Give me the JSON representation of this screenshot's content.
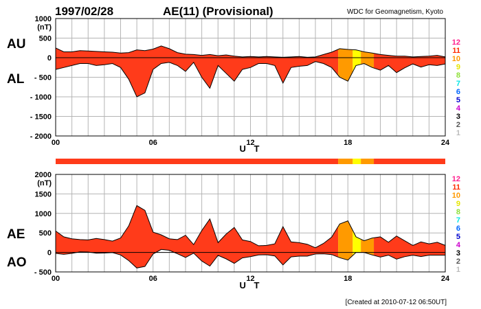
{
  "header": {
    "date": "1997/02/28",
    "title": "AE(11) (Provisional)",
    "organization": "WDC for Geomagnetism, Kyoto"
  },
  "footer": {
    "created": "[Created at 2010-07-12 06:50UT]"
  },
  "colors": {
    "level_11": "#ff3b1a",
    "level_10": "#ff9a00",
    "level_9": "#ffff00",
    "outline": "#000000",
    "grid": "#b4b4b4"
  },
  "legend": [
    {
      "label": "12",
      "color": "#ff1f8e"
    },
    {
      "label": "11",
      "color": "#ff2a00"
    },
    {
      "label": "10",
      "color": "#ff9900"
    },
    {
      "label": "9",
      "color": "#e6e600"
    },
    {
      "label": "8",
      "color": "#8fe03a"
    },
    {
      "label": "7",
      "color": "#00e5e5"
    },
    {
      "label": "6",
      "color": "#0066ff"
    },
    {
      "label": "5",
      "color": "#0000cc"
    },
    {
      "label": "4",
      "color": "#cc00cc"
    },
    {
      "label": "3",
      "color": "#000000"
    },
    {
      "label": "2",
      "color": "#555555"
    },
    {
      "label": "1",
      "color": "#bbbbbb"
    }
  ],
  "chart_data": [
    {
      "type": "area",
      "id": "au_al",
      "xlabel": "U T",
      "ylabel": "(nT)",
      "series_labels": [
        "AU",
        "AL"
      ],
      "xlim": [
        0,
        24
      ],
      "ylim": [
        -2000,
        1000
      ],
      "x_ticks": [
        0,
        6,
        12,
        18,
        24
      ],
      "x_tick_labels": [
        "00",
        "06",
        "12",
        "18",
        "24"
      ],
      "y_ticks": [
        1000,
        500,
        0,
        -500,
        -1000,
        -1500,
        -2000
      ],
      "y_tick_labels": [
        "1000",
        "500",
        "0",
        "- 500",
        "- 1000",
        "- 1500",
        "- 2000"
      ],
      "grid": true,
      "x": [
        0,
        0.5,
        1,
        1.5,
        2,
        2.5,
        3,
        3.5,
        4,
        4.5,
        5,
        5.5,
        6,
        6.5,
        7,
        7.5,
        8,
        8.5,
        9,
        9.5,
        10,
        10.5,
        11,
        11.5,
        12,
        12.5,
        13,
        13.5,
        14,
        14.5,
        15,
        15.5,
        16,
        16.5,
        17,
        17.5,
        18,
        18.5,
        19,
        19.5,
        20,
        20.5,
        21,
        21.5,
        22,
        22.5,
        23,
        23.5,
        24
      ],
      "au": [
        250,
        150,
        150,
        180,
        170,
        160,
        150,
        140,
        120,
        130,
        200,
        180,
        220,
        300,
        230,
        130,
        90,
        80,
        60,
        80,
        50,
        70,
        40,
        20,
        30,
        20,
        30,
        20,
        10,
        20,
        30,
        10,
        20,
        80,
        140,
        230,
        210,
        200,
        150,
        120,
        80,
        60,
        40,
        40,
        20,
        30,
        40,
        60,
        20
      ],
      "al": [
        -300,
        -250,
        -200,
        -150,
        -150,
        -200,
        -180,
        -150,
        -250,
        -550,
        -1000,
        -900,
        -300,
        -150,
        -120,
        -200,
        -350,
        -120,
        -500,
        -780,
        -200,
        -400,
        -600,
        -300,
        -250,
        -150,
        -150,
        -200,
        -650,
        -250,
        -220,
        -200,
        -100,
        -150,
        -250,
        -500,
        -600,
        -200,
        -150,
        -250,
        -320,
        -200,
        -380,
        -260,
        -160,
        -240,
        -180,
        -200,
        -160
      ],
      "level_segments": [
        {
          "start": 0,
          "end": 17.4,
          "level": 11
        },
        {
          "start": 17.4,
          "end": 18.3,
          "level": 10
        },
        {
          "start": 18.3,
          "end": 18.8,
          "level": 9
        },
        {
          "start": 18.8,
          "end": 19.6,
          "level": 10
        },
        {
          "start": 19.6,
          "end": 24,
          "level": 11
        }
      ]
    },
    {
      "type": "area",
      "id": "ae_ao",
      "xlabel": "U T",
      "ylabel": "(nT)",
      "series_labels": [
        "AE",
        "AO"
      ],
      "xlim": [
        0,
        24
      ],
      "ylim": [
        -500,
        2000
      ],
      "x_ticks": [
        0,
        6,
        12,
        18,
        24
      ],
      "x_tick_labels": [
        "00",
        "06",
        "12",
        "18",
        "24"
      ],
      "y_ticks": [
        2000,
        1500,
        1000,
        500,
        0,
        -500
      ],
      "y_tick_labels": [
        "2000",
        "1500",
        "1000",
        "500",
        "0",
        "- 500"
      ],
      "grid": true,
      "x": [
        0,
        0.5,
        1,
        1.5,
        2,
        2.5,
        3,
        3.5,
        4,
        4.5,
        5,
        5.5,
        6,
        6.5,
        7,
        7.5,
        8,
        8.5,
        9,
        9.5,
        10,
        10.5,
        11,
        11.5,
        12,
        12.5,
        13,
        13.5,
        14,
        14.5,
        15,
        15.5,
        16,
        16.5,
        17,
        17.5,
        18,
        18.5,
        19,
        19.5,
        20,
        20.5,
        21,
        21.5,
        22,
        22.5,
        23,
        23.5,
        24
      ],
      "ae": [
        550,
        400,
        350,
        330,
        320,
        360,
        330,
        290,
        370,
        680,
        1200,
        1080,
        520,
        450,
        350,
        330,
        440,
        200,
        560,
        860,
        250,
        470,
        640,
        320,
        280,
        170,
        180,
        220,
        660,
        270,
        250,
        210,
        120,
        230,
        390,
        730,
        810,
        400,
        300,
        370,
        400,
        260,
        420,
        300,
        180,
        270,
        220,
        260,
        180
      ],
      "ao": [
        -25,
        -50,
        -25,
        15,
        10,
        -20,
        -15,
        -5,
        -65,
        -210,
        -400,
        -360,
        -40,
        75,
        55,
        -35,
        -130,
        -20,
        -220,
        -350,
        -75,
        -165,
        -280,
        -140,
        -110,
        -65,
        -60,
        -90,
        -320,
        -115,
        -95,
        -95,
        -40,
        -35,
        -55,
        -135,
        -195,
        0,
        0,
        -65,
        -120,
        -70,
        -170,
        -110,
        -70,
        -105,
        -70,
        -70,
        -70
      ],
      "level_segments": [
        {
          "start": 0,
          "end": 17.4,
          "level": 11
        },
        {
          "start": 17.4,
          "end": 18.3,
          "level": 10
        },
        {
          "start": 18.3,
          "end": 18.8,
          "level": 9
        },
        {
          "start": 18.8,
          "end": 19.6,
          "level": 10
        },
        {
          "start": 19.6,
          "end": 24,
          "level": 11
        }
      ]
    }
  ]
}
